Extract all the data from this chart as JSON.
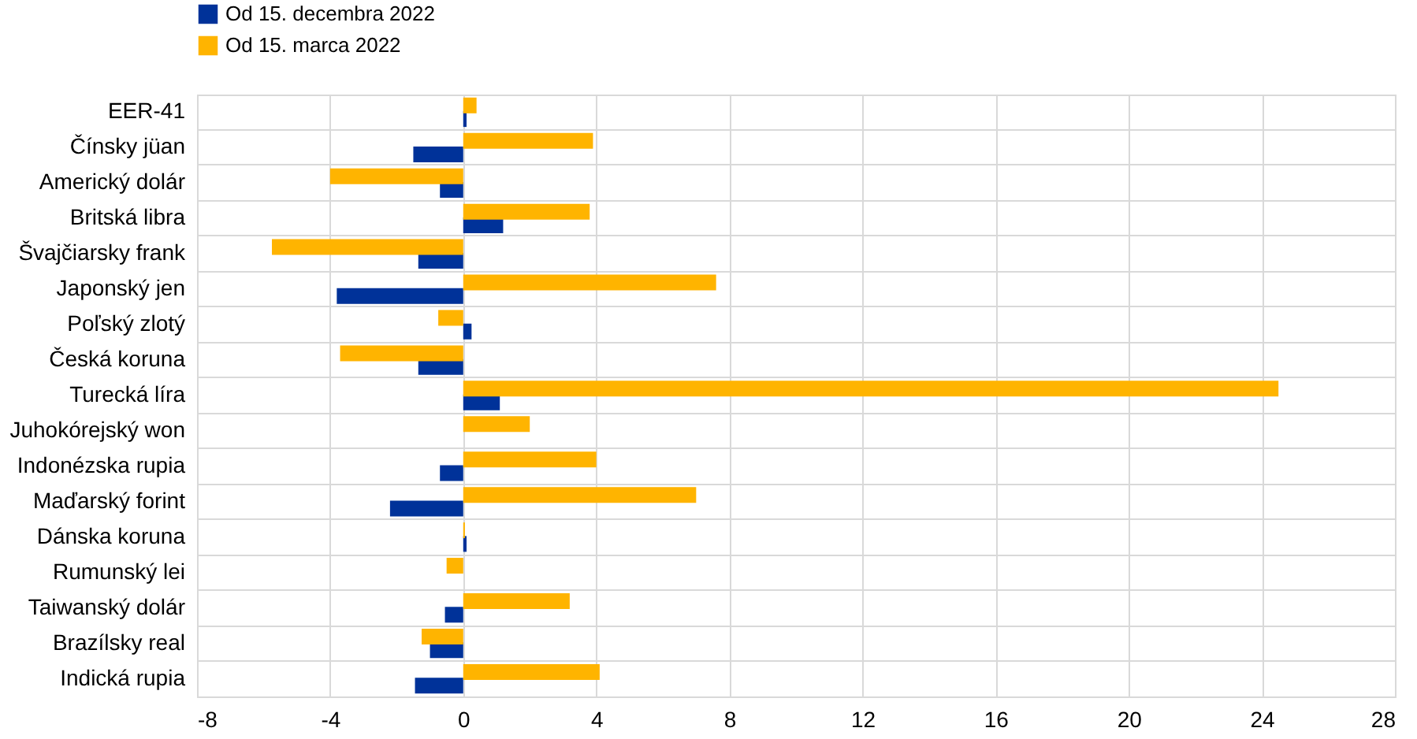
{
  "chart_data": {
    "type": "bar",
    "orientation": "horizontal",
    "categories": [
      "EER-41",
      "Čínsky jüan",
      "Americký dolár",
      "Britská libra",
      "Švajčiarsky frank",
      "Japonský jen",
      "Poľský zlotý",
      "Česká koruna",
      "Turecká líra",
      "Juhokórejský won",
      "Indonézska rupia",
      "Maďarský forint",
      "Dánska koruna",
      "Rumunský lei",
      "Taiwanský dolár",
      "Brazílsky real",
      "Indická rupia"
    ],
    "series": [
      {
        "name": "Od 15. decembra 2022",
        "color": "#003299",
        "values": [
          0.1,
          -1.5,
          -0.7,
          1.2,
          -1.35,
          -3.8,
          0.25,
          -1.35,
          1.1,
          null,
          -0.7,
          -2.2,
          0.1,
          null,
          -0.55,
          -1.0,
          -1.45
        ]
      },
      {
        "name": "Od 15. marca 2022",
        "color": "#ffb400",
        "values": [
          0.4,
          3.9,
          -4.0,
          3.8,
          -5.75,
          7.6,
          -0.75,
          -3.7,
          24.5,
          2.0,
          4.0,
          7.0,
          0.05,
          -0.5,
          3.2,
          -1.25,
          4.1
        ]
      }
    ],
    "xlim": [
      -8,
      28
    ],
    "xticks": [
      -8,
      -4,
      0,
      4,
      8,
      12,
      16,
      20,
      24,
      28
    ],
    "grid": true,
    "legend": "top left"
  }
}
